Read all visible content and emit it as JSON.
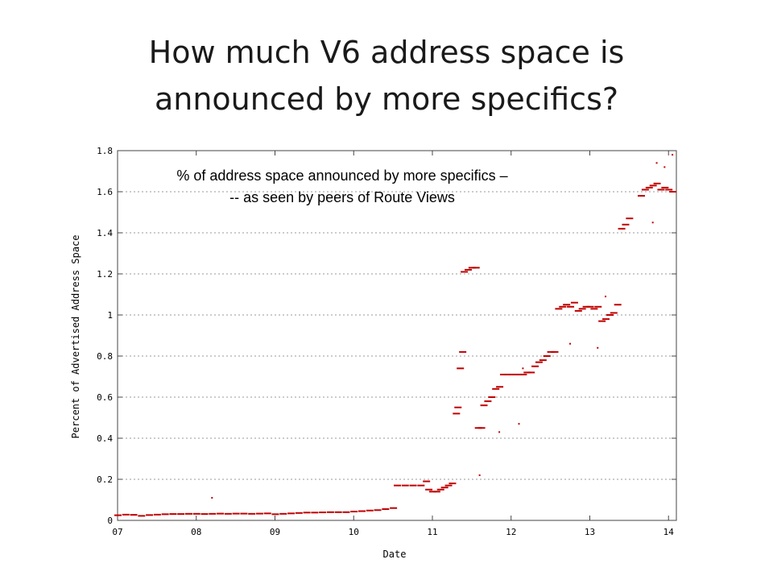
{
  "slide": {
    "title_line1": "How much V6 address space is",
    "title_line2": "announced by more specifics?"
  },
  "chart_data": {
    "type": "scatter",
    "xlabel": "Date",
    "ylabel": "Percent of Advertised Address Space",
    "xlim": [
      7,
      14.1
    ],
    "ylim": [
      0,
      1.8
    ],
    "x_ticks": [
      "07",
      "08",
      "09",
      "10",
      "11",
      "12",
      "13",
      "14"
    ],
    "y_ticks": [
      "0",
      "0.2",
      "0.4",
      "0.6",
      "0.8",
      "1",
      "1.2",
      "1.4",
      "1.6",
      "1.8"
    ],
    "grid": true,
    "annotation_line1": "% of address space announced by more specifics –",
    "annotation_line2": "-- as seen by peers of Route Views",
    "series_color": "#c00000",
    "series": [
      {
        "points": [
          [
            7.0,
            0.025
          ],
          [
            7.1,
            0.028
          ],
          [
            7.2,
            0.027
          ],
          [
            7.3,
            0.022
          ],
          [
            7.4,
            0.026
          ],
          [
            7.5,
            0.028
          ],
          [
            7.6,
            0.03
          ],
          [
            7.7,
            0.031
          ],
          [
            7.8,
            0.031
          ],
          [
            7.9,
            0.032
          ],
          [
            8.0,
            0.032
          ],
          [
            8.1,
            0.031
          ],
          [
            8.2,
            0.032
          ],
          [
            8.3,
            0.033
          ],
          [
            8.4,
            0.032
          ],
          [
            8.5,
            0.033
          ],
          [
            8.6,
            0.033
          ],
          [
            8.7,
            0.032
          ],
          [
            8.8,
            0.033
          ],
          [
            8.9,
            0.034
          ],
          [
            9.0,
            0.03
          ],
          [
            9.1,
            0.032
          ],
          [
            9.2,
            0.034
          ],
          [
            9.3,
            0.036
          ],
          [
            9.4,
            0.038
          ],
          [
            9.5,
            0.038
          ],
          [
            9.6,
            0.039
          ],
          [
            9.7,
            0.04
          ],
          [
            9.8,
            0.04
          ],
          [
            9.9,
            0.04
          ],
          [
            10.0,
            0.043
          ],
          [
            10.1,
            0.045
          ],
          [
            10.2,
            0.048
          ],
          [
            10.3,
            0.05
          ],
          [
            10.4,
            0.055
          ],
          [
            10.5,
            0.06
          ],
          [
            10.55,
            0.17
          ],
          [
            10.65,
            0.17
          ],
          [
            10.75,
            0.17
          ],
          [
            10.85,
            0.17
          ],
          [
            10.92,
            0.19
          ],
          [
            10.95,
            0.15
          ],
          [
            11.0,
            0.14
          ],
          [
            11.05,
            0.14
          ],
          [
            11.1,
            0.15
          ],
          [
            11.15,
            0.16
          ],
          [
            11.2,
            0.17
          ],
          [
            11.25,
            0.18
          ],
          [
            11.3,
            0.52
          ],
          [
            11.32,
            0.55
          ],
          [
            11.35,
            0.74
          ],
          [
            11.38,
            0.82
          ],
          [
            11.4,
            1.21
          ],
          [
            11.45,
            1.22
          ],
          [
            11.5,
            1.23
          ],
          [
            11.55,
            1.23
          ],
          [
            11.58,
            0.45
          ],
          [
            11.62,
            0.45
          ],
          [
            11.65,
            0.56
          ],
          [
            11.7,
            0.58
          ],
          [
            11.75,
            0.6
          ],
          [
            11.8,
            0.64
          ],
          [
            11.85,
            0.65
          ],
          [
            11.9,
            0.71
          ],
          [
            11.95,
            0.71
          ],
          [
            12.0,
            0.71
          ],
          [
            12.05,
            0.71
          ],
          [
            12.1,
            0.71
          ],
          [
            12.15,
            0.71
          ],
          [
            12.2,
            0.72
          ],
          [
            12.25,
            0.72
          ],
          [
            12.3,
            0.75
          ],
          [
            12.35,
            0.77
          ],
          [
            12.4,
            0.78
          ],
          [
            12.45,
            0.8
          ],
          [
            12.5,
            0.82
          ],
          [
            12.55,
            0.82
          ],
          [
            12.6,
            1.03
          ],
          [
            12.65,
            1.04
          ],
          [
            12.7,
            1.05
          ],
          [
            12.75,
            1.04
          ],
          [
            12.8,
            1.06
          ],
          [
            12.85,
            1.02
          ],
          [
            12.9,
            1.03
          ],
          [
            12.95,
            1.04
          ],
          [
            13.0,
            1.04
          ],
          [
            13.05,
            1.03
          ],
          [
            13.1,
            1.04
          ],
          [
            13.15,
            0.97
          ],
          [
            13.2,
            0.98
          ],
          [
            13.25,
            1.0
          ],
          [
            13.3,
            1.01
          ],
          [
            13.35,
            1.05
          ],
          [
            13.4,
            1.42
          ],
          [
            13.45,
            1.44
          ],
          [
            13.5,
            1.47
          ],
          [
            13.65,
            1.58
          ],
          [
            13.7,
            1.61
          ],
          [
            13.75,
            1.62
          ],
          [
            13.8,
            1.63
          ],
          [
            13.85,
            1.64
          ],
          [
            13.9,
            1.61
          ],
          [
            13.95,
            1.62
          ],
          [
            14.0,
            1.61
          ],
          [
            14.05,
            1.6
          ]
        ],
        "outliers": [
          [
            8.2,
            0.11
          ],
          [
            11.6,
            0.22
          ],
          [
            12.1,
            0.47
          ],
          [
            12.15,
            0.74
          ],
          [
            12.75,
            0.86
          ],
          [
            13.1,
            0.84
          ],
          [
            13.2,
            1.09
          ],
          [
            13.85,
            1.74
          ],
          [
            13.95,
            1.72
          ],
          [
            14.05,
            1.78
          ],
          [
            13.8,
            1.45
          ],
          [
            11.85,
            0.43
          ]
        ]
      }
    ]
  }
}
